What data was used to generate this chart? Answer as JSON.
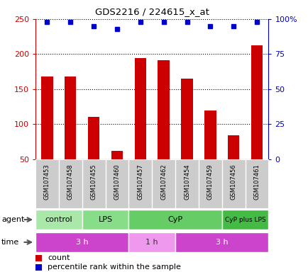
{
  "title": "GDS2216 / 224615_x_at",
  "samples": [
    "GSM107453",
    "GSM107458",
    "GSM107455",
    "GSM107460",
    "GSM107457",
    "GSM107462",
    "GSM107454",
    "GSM107459",
    "GSM107456",
    "GSM107461"
  ],
  "count_values": [
    168,
    168,
    110,
    62,
    194,
    191,
    165,
    119,
    84,
    212
  ],
  "percentile_values": [
    98,
    98,
    95,
    93,
    98,
    98,
    98,
    95,
    95,
    98
  ],
  "count_color": "#cc0000",
  "percentile_color": "#0000cc",
  "ylim_left": [
    50,
    250
  ],
  "ylim_right": [
    0,
    100
  ],
  "yticks_left": [
    50,
    100,
    150,
    200,
    250
  ],
  "yticks_right": [
    0,
    25,
    50,
    75,
    100
  ],
  "agent_groups": [
    {
      "label": "control",
      "start": 0,
      "end": 2,
      "color": "#aae8aa"
    },
    {
      "label": "LPS",
      "start": 2,
      "end": 4,
      "color": "#88dd88"
    },
    {
      "label": "CyP",
      "start": 4,
      "end": 8,
      "color": "#66cc66"
    },
    {
      "label": "CyP plus LPS",
      "start": 8,
      "end": 10,
      "color": "#44bb44"
    }
  ],
  "time_groups": [
    {
      "label": "3 h",
      "start": 0,
      "end": 4,
      "color": "#dd44cc"
    },
    {
      "label": "1 h",
      "start": 4,
      "end": 6,
      "color": "#ee99ee"
    },
    {
      "label": "3 h",
      "start": 6,
      "end": 10,
      "color": "#dd44cc"
    }
  ],
  "agent_label": "agent",
  "time_label": "time",
  "legend_count": "count",
  "legend_percentile": "percentile rank within the sample",
  "bar_width": 0.5,
  "background_color": "#ffffff",
  "grid_color": "#000000",
  "label_bg": "#cccccc"
}
